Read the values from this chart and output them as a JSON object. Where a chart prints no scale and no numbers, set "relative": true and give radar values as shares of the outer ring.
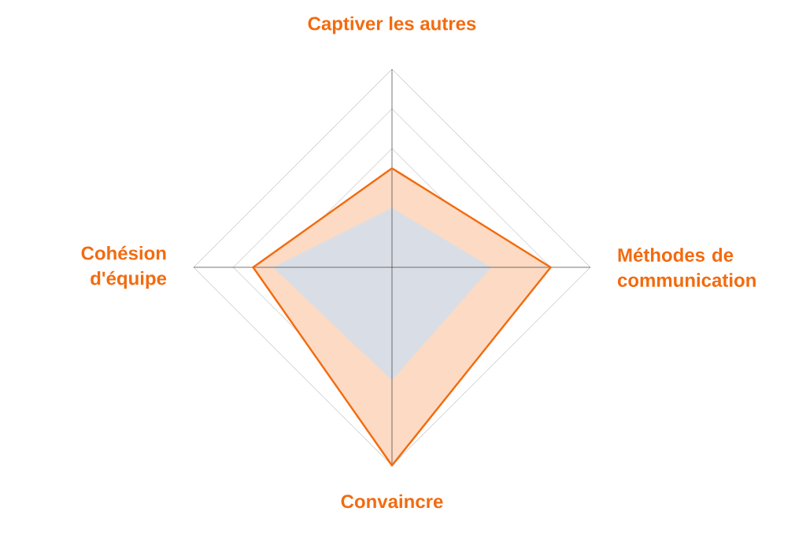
{
  "chart_data": {
    "type": "radar",
    "relative": true,
    "grid": true,
    "categories": [
      "Captiver les autres",
      "Méthodes de communication",
      "Convaincre",
      "Cohésion d'équipe"
    ],
    "series": [
      {
        "color": "#f26b0f",
        "values": [
          0.5,
          0.8,
          1.0,
          0.7
        ]
      },
      {
        "color": "#c9d0dc",
        "values": [
          0.3,
          0.5,
          0.57,
          0.6
        ]
      }
    ]
  }
}
